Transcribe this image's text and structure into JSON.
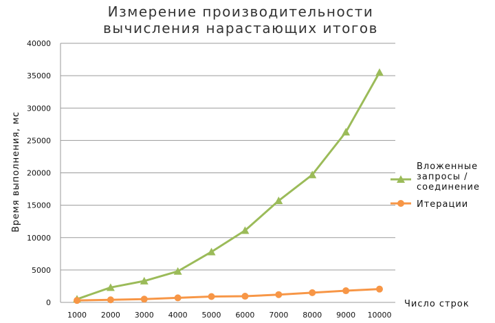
{
  "chart_data": {
    "type": "line",
    "title_lines": [
      "Измерение производительности",
      "вычисления нарастающих итогов"
    ],
    "xlabel": "Число строк",
    "ylabel": "Время выполнения, мс",
    "categories": [
      "1000",
      "2000",
      "3000",
      "4000",
      "5000",
      "6000",
      "7000",
      "8000",
      "9000",
      "10000"
    ],
    "ylim": [
      0,
      40000
    ],
    "yticks": [
      "0",
      "5000",
      "10000",
      "15000",
      "20000",
      "25000",
      "30000",
      "35000",
      "40000"
    ],
    "grid": "horizontal",
    "legend_position": "right",
    "series": [
      {
        "name_lines": [
          "Вложенные",
          "запросы /",
          "соединение"
        ],
        "values": [
          500,
          2300,
          3300,
          4800,
          7800,
          11100,
          15700,
          19700,
          26300,
          35500
        ],
        "color": "#9bbb59",
        "marker": "triangle"
      },
      {
        "name_lines": [
          "Итерации"
        ],
        "values": [
          300,
          400,
          500,
          700,
          900,
          950,
          1200,
          1500,
          1800,
          2050
        ],
        "color": "#f79646",
        "marker": "circle"
      }
    ]
  }
}
